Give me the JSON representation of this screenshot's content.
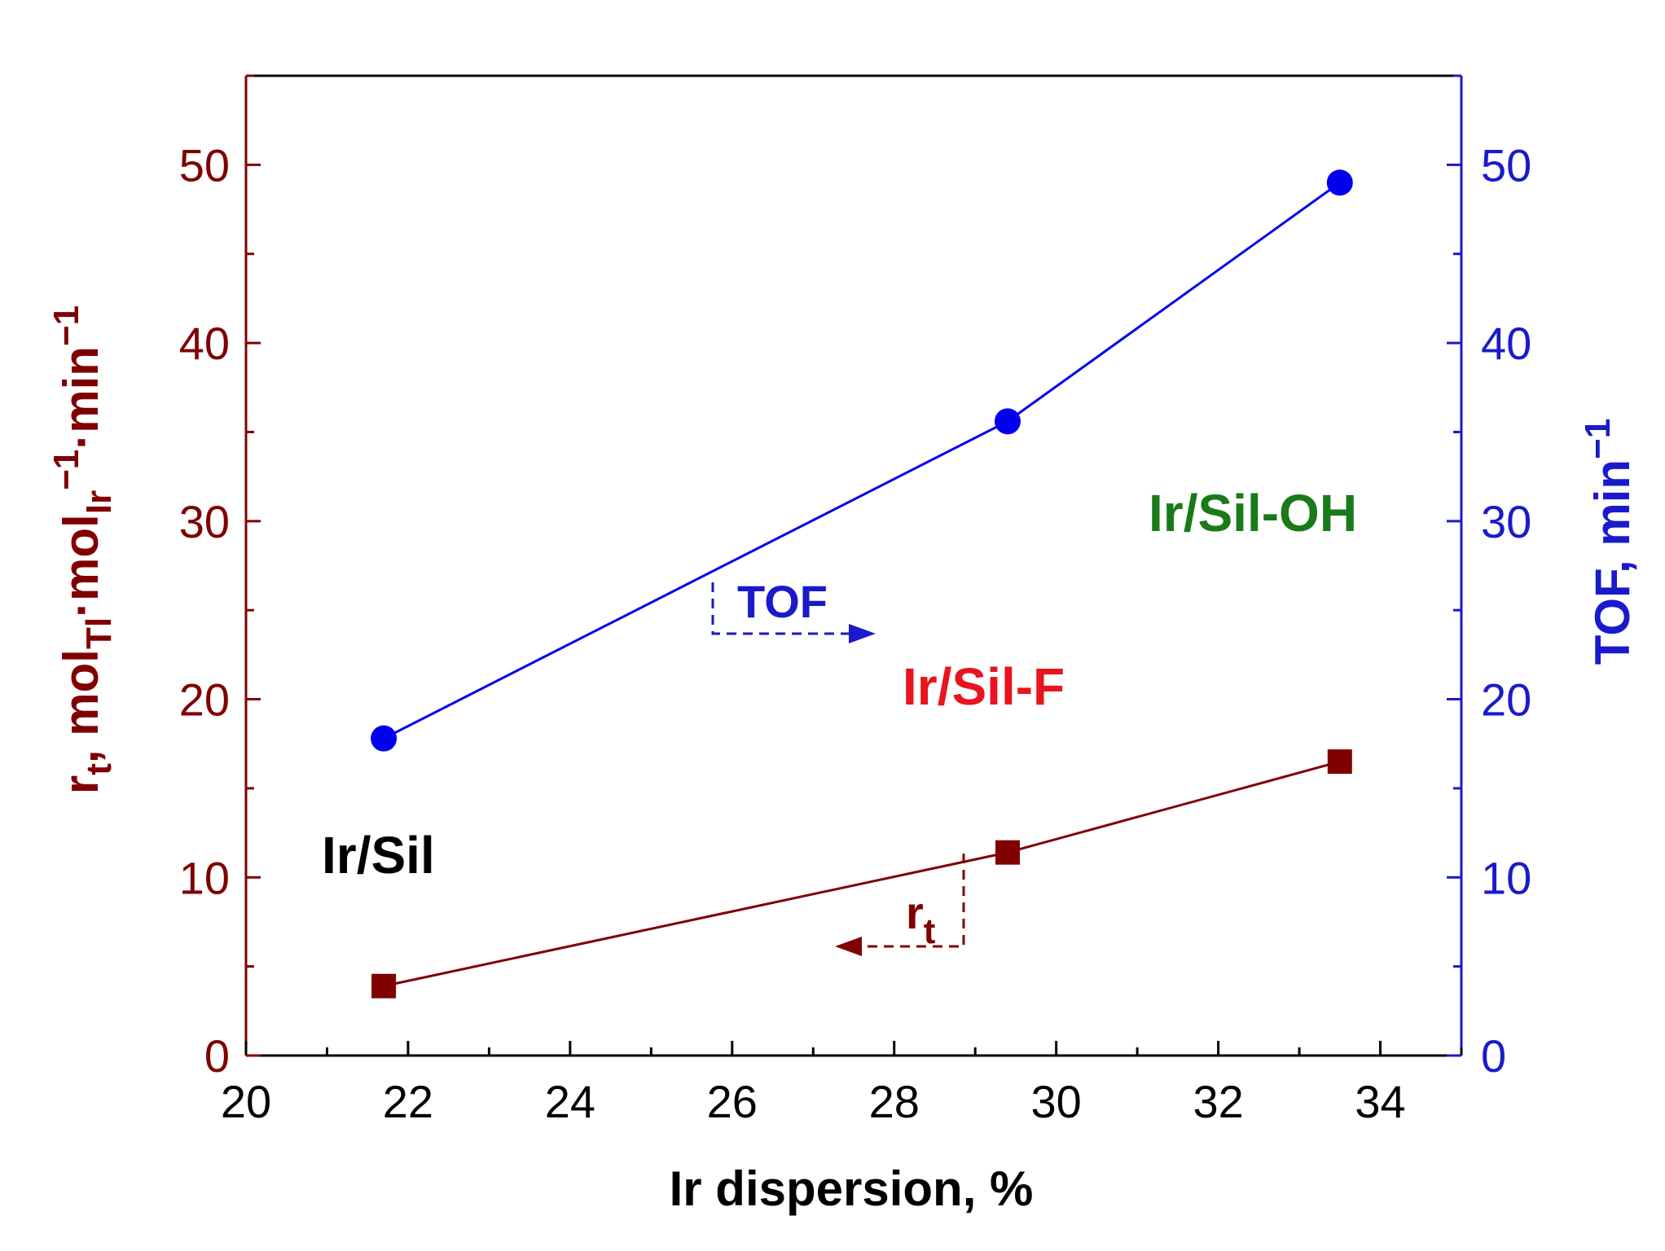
{
  "chart_data": {
    "type": "line",
    "x_axis": {
      "label": "Ir dispersion, %",
      "range": [
        20,
        35
      ],
      "ticks": [
        20,
        22,
        24,
        26,
        28,
        30,
        32,
        34
      ],
      "tick_labels": [
        "20",
        "22",
        "24",
        "26",
        "28",
        "30",
        "32",
        "34"
      ]
    },
    "y_axis_left": {
      "label_parts": {
        "r": "r",
        "r_sub": "t",
        "sep1": ", mol",
        "mol1_sub": "Tl",
        "dot1": "·mol",
        "mol2_sub": "Ir",
        "sup1": "−1",
        "dot2": "·min",
        "sup2": "−1"
      },
      "range": [
        0,
        55
      ],
      "ticks": [
        0,
        10,
        20,
        30,
        40,
        50
      ],
      "tick_labels": [
        "0",
        "10",
        "20",
        "30",
        "40",
        "50"
      ],
      "color": "#800000"
    },
    "y_axis_right": {
      "label_parts": {
        "main": "TOF, min",
        "sup": "−1"
      },
      "range": [
        0,
        55
      ],
      "ticks": [
        0,
        10,
        20,
        30,
        40,
        50
      ],
      "tick_labels": [
        "0",
        "10",
        "20",
        "30",
        "40",
        "50"
      ],
      "color": "#1a1acc"
    },
    "series": [
      {
        "name": "TOF",
        "axis": "right",
        "marker": "circle",
        "color": "#0000ee",
        "x": [
          21.7,
          29.4,
          33.5
        ],
        "y": [
          17.8,
          35.6,
          49.0
        ]
      },
      {
        "name": "r_t",
        "axis": "left",
        "marker": "square",
        "color": "#800000",
        "x": [
          21.7,
          29.4,
          33.5
        ],
        "y": [
          3.9,
          11.4,
          16.5
        ]
      }
    ],
    "annotations": {
      "ir_sil": {
        "text": "Ir/Sil",
        "color": "#000000"
      },
      "ir_sil_f": {
        "text": "Ir/Sil-F",
        "color": "#e8141e"
      },
      "ir_sil_oh": {
        "text": "Ir/Sil-OH",
        "color": "#1a7a1a"
      },
      "tof_arrow": {
        "text": "TOF",
        "color": "#1a1acc"
      },
      "rt_arrow": {
        "text": "r",
        "sub": "t",
        "color": "#800000"
      }
    },
    "grid": false
  }
}
